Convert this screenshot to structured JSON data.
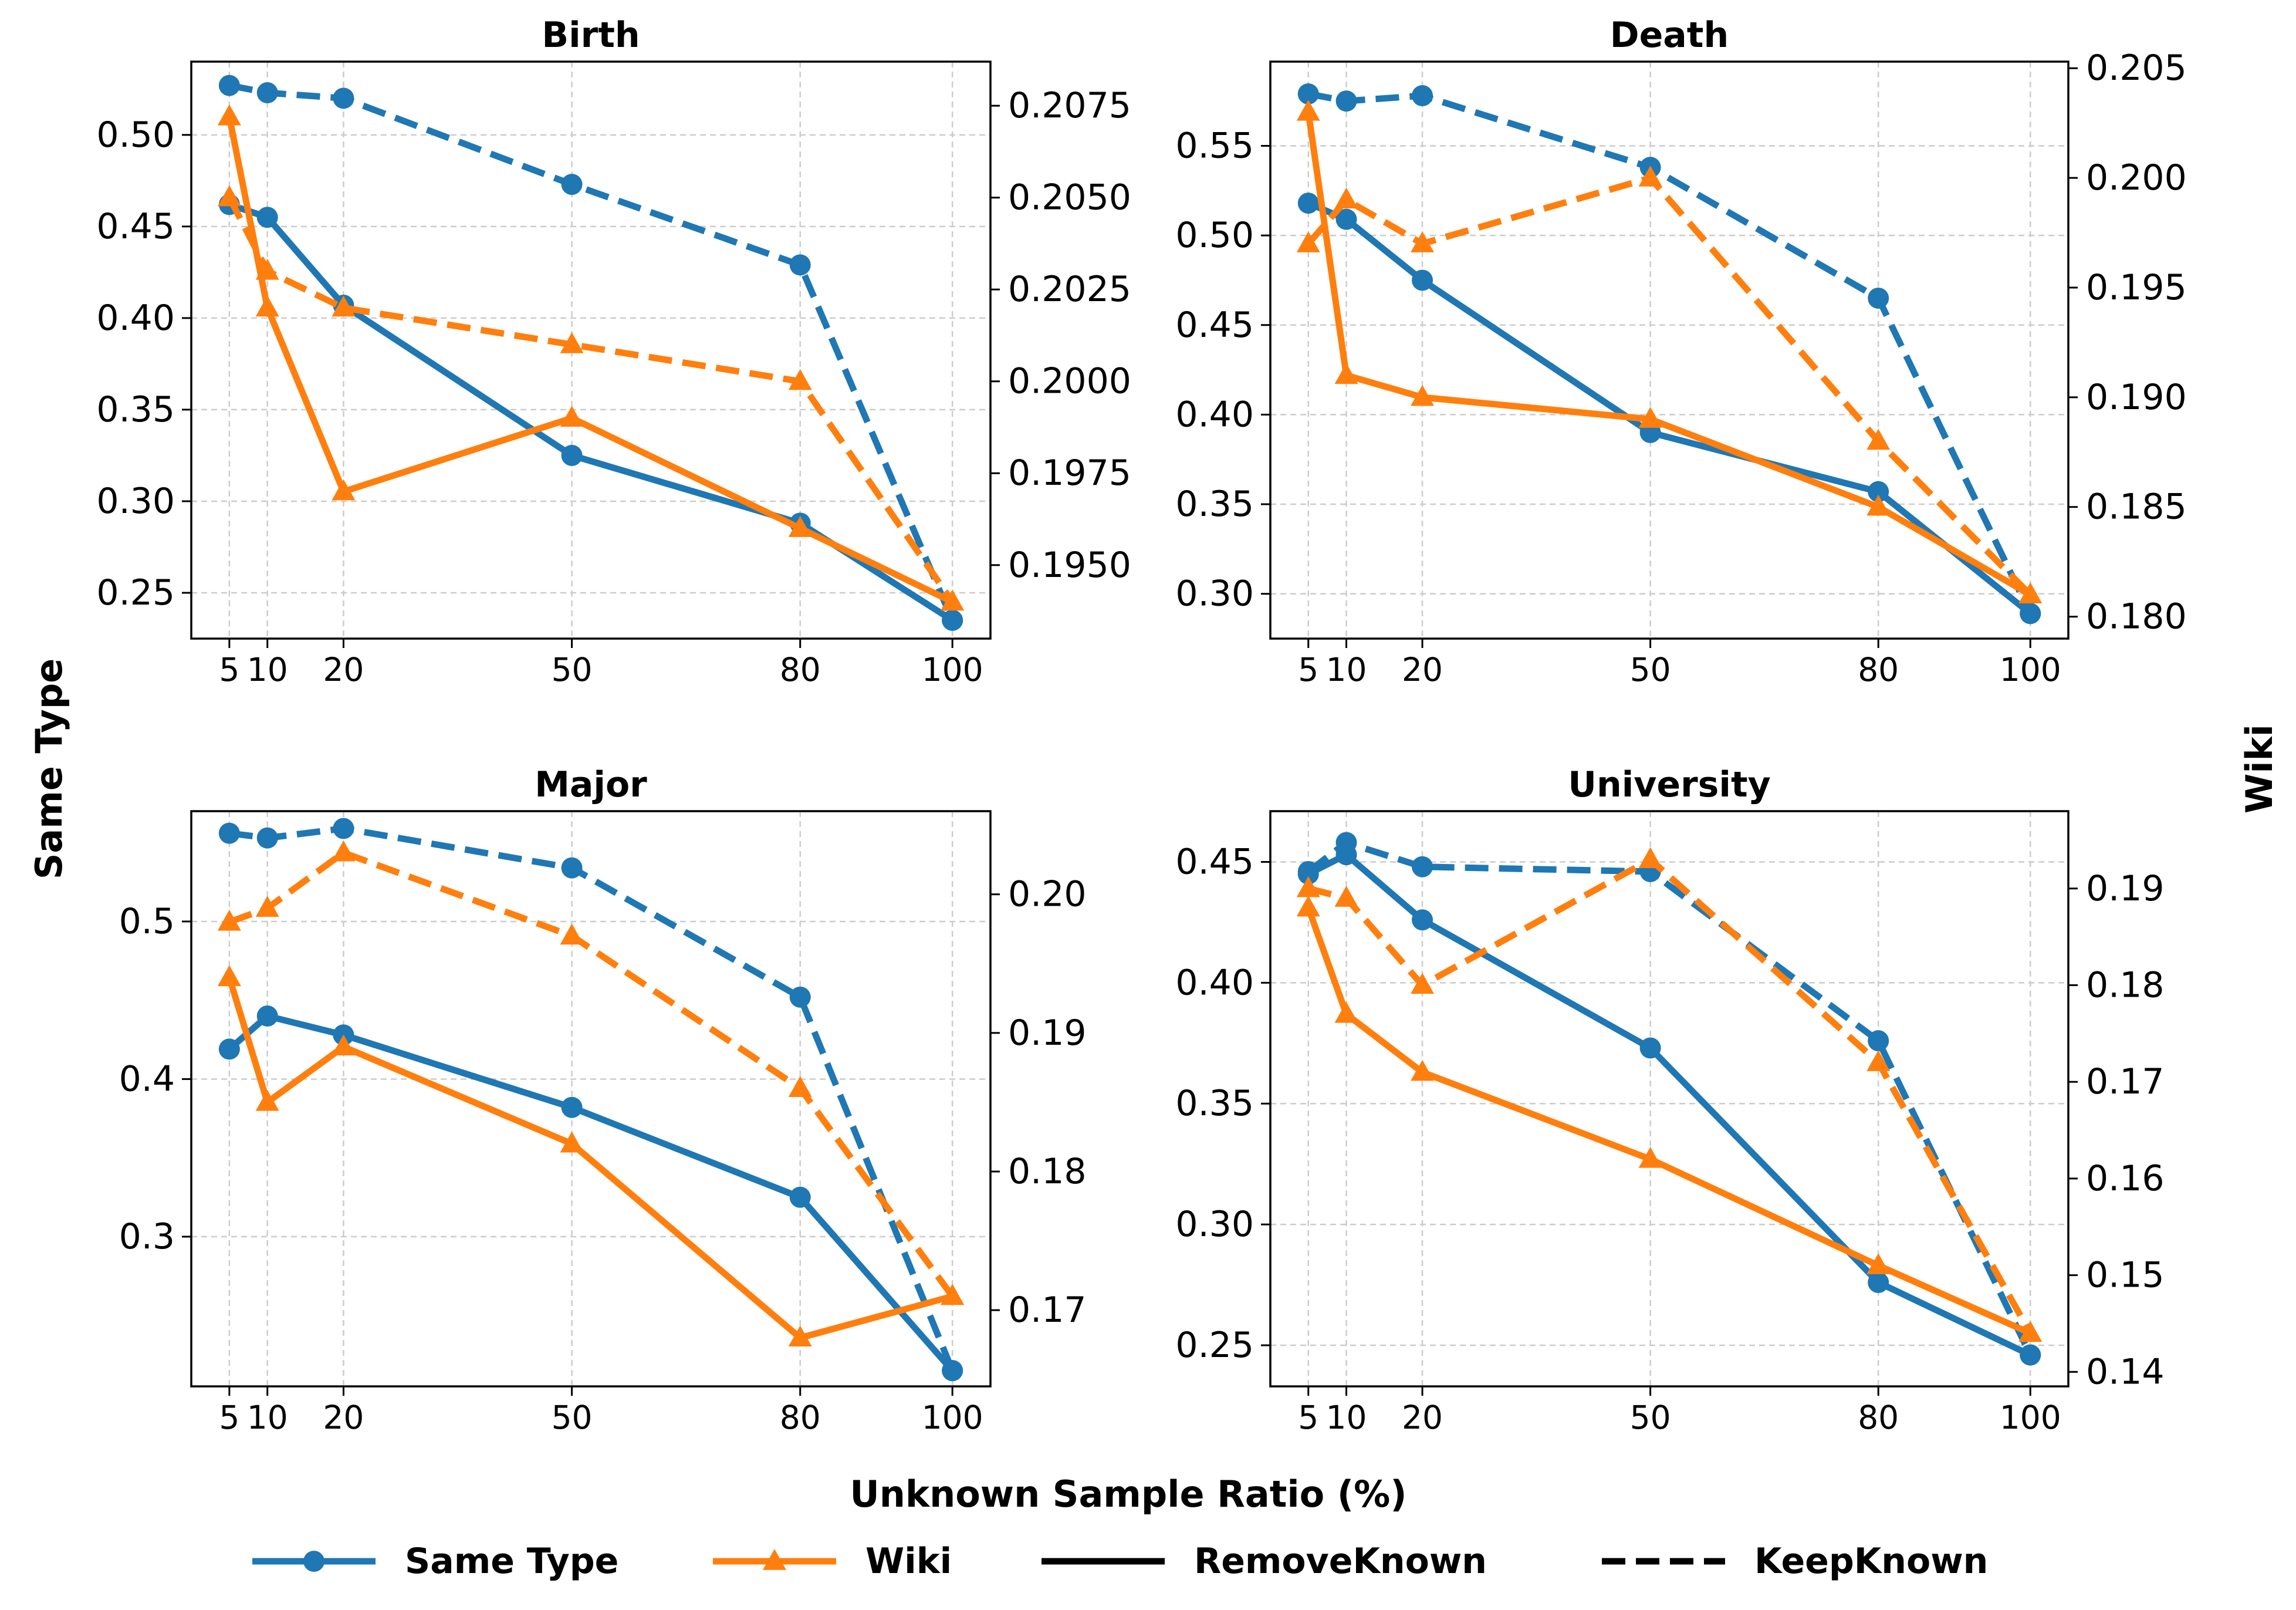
{
  "figure": {
    "ylabel_left": "Same Type",
    "ylabel_right": "Wiki",
    "xlabel": "Unknown Sample Ratio (%)"
  },
  "legend": {
    "placement": "bottom-center",
    "items": [
      {
        "label": "Same Type",
        "kind": "marker-line",
        "color": "#1f77b4",
        "marker": "circle"
      },
      {
        "label": "Wiki",
        "kind": "marker-line",
        "color": "#ff7f0e",
        "marker": "triangle"
      },
      {
        "label": "RemoveKnown",
        "kind": "solid-line",
        "color": "#000000"
      },
      {
        "label": "KeepKnown",
        "kind": "dashed-line",
        "color": "#000000"
      }
    ]
  },
  "colors": {
    "same_type": "#1f77b4",
    "wiki": "#ff7f0e",
    "grid": "#cccccc"
  },
  "chart_data": [
    {
      "type": "line",
      "title": "Birth",
      "x": [
        5,
        10,
        20,
        50,
        80,
        100
      ],
      "xticks": [
        "5",
        "10",
        "20",
        "50",
        "80",
        "100"
      ],
      "xlim": [
        0,
        105
      ],
      "ylim_left": [
        0.225,
        0.54
      ],
      "yticks_left": [
        0.25,
        0.3,
        0.35,
        0.4,
        0.45,
        0.5
      ],
      "ytick_labels_left": [
        "0.25",
        "0.30",
        "0.35",
        "0.40",
        "0.45",
        "0.50"
      ],
      "ylim_right": [
        0.193,
        0.2087
      ],
      "yticks_right": [
        0.195,
        0.1975,
        0.2,
        0.2025,
        0.205,
        0.2075
      ],
      "ytick_labels_right": [
        "0.1950",
        "0.1975",
        "0.2000",
        "0.2025",
        "0.2050",
        "0.2075"
      ],
      "series": [
        {
          "name": "Same Type",
          "variant": "RemoveKnown",
          "axis": "left",
          "values": [
            0.462,
            0.455,
            0.407,
            0.325,
            0.288,
            0.235
          ]
        },
        {
          "name": "Same Type",
          "variant": "KeepKnown",
          "axis": "left",
          "values": [
            0.527,
            0.523,
            0.52,
            0.473,
            0.429,
            0.235
          ]
        },
        {
          "name": "Wiki",
          "variant": "RemoveKnown",
          "axis": "right",
          "values": [
            0.2072,
            0.202,
            0.197,
            0.199,
            0.196,
            0.194
          ]
        },
        {
          "name": "Wiki",
          "variant": "KeepKnown",
          "axis": "right",
          "values": [
            0.205,
            0.203,
            0.202,
            0.201,
            0.2,
            0.194
          ]
        }
      ]
    },
    {
      "type": "line",
      "title": "Death",
      "x": [
        5,
        10,
        20,
        50,
        80,
        100
      ],
      "xticks": [
        "5",
        "10",
        "20",
        "50",
        "80",
        "100"
      ],
      "xlim": [
        0,
        105
      ],
      "ylim_left": [
        0.275,
        0.597
      ],
      "yticks_left": [
        0.3,
        0.35,
        0.4,
        0.45,
        0.5,
        0.55
      ],
      "ytick_labels_left": [
        "0.30",
        "0.35",
        "0.40",
        "0.45",
        "0.50",
        "0.55"
      ],
      "ylim_right": [
        0.179,
        0.2053
      ],
      "yticks_right": [
        0.18,
        0.185,
        0.19,
        0.195,
        0.2,
        0.205
      ],
      "ytick_labels_right": [
        "0.180",
        "0.185",
        "0.190",
        "0.195",
        "0.200",
        "0.205"
      ],
      "series": [
        {
          "name": "Same Type",
          "variant": "RemoveKnown",
          "axis": "left",
          "values": [
            0.518,
            0.509,
            0.475,
            0.39,
            0.357,
            0.289
          ]
        },
        {
          "name": "Same Type",
          "variant": "KeepKnown",
          "axis": "left",
          "values": [
            0.579,
            0.575,
            0.578,
            0.538,
            0.465,
            0.289
          ]
        },
        {
          "name": "Wiki",
          "variant": "RemoveKnown",
          "axis": "right",
          "values": [
            0.203,
            0.191,
            0.19,
            0.189,
            0.185,
            0.181
          ]
        },
        {
          "name": "Wiki",
          "variant": "KeepKnown",
          "axis": "right",
          "values": [
            0.197,
            0.199,
            0.197,
            0.2,
            0.188,
            0.181
          ]
        }
      ]
    },
    {
      "type": "line",
      "title": "Major",
      "x": [
        5,
        10,
        20,
        50,
        80,
        100
      ],
      "xticks": [
        "5",
        "10",
        "20",
        "50",
        "80",
        "100"
      ],
      "xlim": [
        0,
        105
      ],
      "ylim_left": [
        0.205,
        0.57
      ],
      "yticks_left": [
        0.3,
        0.4,
        0.5
      ],
      "ytick_labels_left": [
        "0.3",
        "0.4",
        "0.5"
      ],
      "ylim_right": [
        0.1645,
        0.206
      ],
      "yticks_right": [
        0.17,
        0.18,
        0.19,
        0.2
      ],
      "ytick_labels_right": [
        "0.17",
        "0.18",
        "0.19",
        "0.20"
      ],
      "series": [
        {
          "name": "Same Type",
          "variant": "RemoveKnown",
          "axis": "left",
          "values": [
            0.419,
            0.44,
            0.428,
            0.382,
            0.325,
            0.215
          ]
        },
        {
          "name": "Same Type",
          "variant": "KeepKnown",
          "axis": "left",
          "values": [
            0.556,
            0.553,
            0.559,
            0.534,
            0.452,
            0.215
          ]
        },
        {
          "name": "Wiki",
          "variant": "RemoveKnown",
          "axis": "right",
          "values": [
            0.194,
            0.185,
            0.189,
            0.182,
            0.168,
            0.171
          ]
        },
        {
          "name": "Wiki",
          "variant": "KeepKnown",
          "axis": "right",
          "values": [
            0.198,
            0.199,
            0.203,
            0.197,
            0.186,
            0.171
          ]
        }
      ]
    },
    {
      "type": "line",
      "title": "University",
      "x": [
        5,
        10,
        20,
        50,
        80,
        100
      ],
      "xticks": [
        "5",
        "10",
        "20",
        "50",
        "80",
        "100"
      ],
      "xlim": [
        0,
        105
      ],
      "ylim_left": [
        0.233,
        0.471
      ],
      "yticks_left": [
        0.25,
        0.3,
        0.35,
        0.4,
        0.45
      ],
      "ytick_labels_left": [
        "0.25",
        "0.30",
        "0.35",
        "0.40",
        "0.45"
      ],
      "ylim_right": [
        0.1385,
        0.198
      ],
      "yticks_right": [
        0.14,
        0.15,
        0.16,
        0.17,
        0.18,
        0.19
      ],
      "ytick_labels_right": [
        "0.14",
        "0.15",
        "0.16",
        "0.17",
        "0.18",
        "0.19"
      ],
      "series": [
        {
          "name": "Same Type",
          "variant": "RemoveKnown",
          "axis": "left",
          "values": [
            0.445,
            0.453,
            0.426,
            0.373,
            0.276,
            0.246
          ]
        },
        {
          "name": "Same Type",
          "variant": "KeepKnown",
          "axis": "left",
          "values": [
            0.446,
            0.458,
            0.448,
            0.446,
            0.376,
            0.246
          ]
        },
        {
          "name": "Wiki",
          "variant": "RemoveKnown",
          "axis": "right",
          "values": [
            0.188,
            0.177,
            0.171,
            0.162,
            0.151,
            0.144
          ]
        },
        {
          "name": "Wiki",
          "variant": "KeepKnown",
          "axis": "right",
          "values": [
            0.19,
            0.189,
            0.18,
            0.193,
            0.172,
            0.144
          ]
        }
      ]
    }
  ]
}
